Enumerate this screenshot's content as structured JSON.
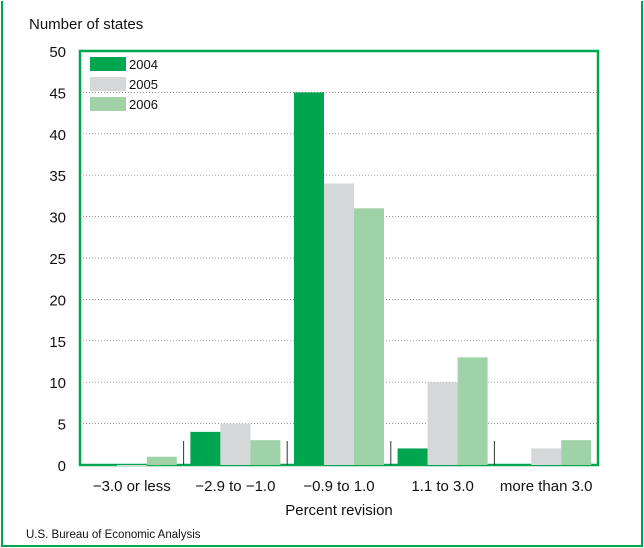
{
  "chart_data": {
    "type": "bar",
    "ylabel": "Number of states",
    "xlabel": "Percent revision",
    "categories": [
      "−3.0 or less",
      "−2.9 to −1.0",
      "−0.9 to 1.0",
      "1.1 to 3.0",
      "more than 3.0"
    ],
    "series": [
      {
        "name": "2004",
        "values": [
          0,
          4,
          45,
          2,
          0
        ],
        "color": "#00a550"
      },
      {
        "name": "2005",
        "values": [
          0,
          5,
          34,
          10,
          2
        ],
        "color": "#d6d7d9"
      },
      {
        "name": "2006",
        "values": [
          1,
          3,
          31,
          13,
          3
        ],
        "color": "#9fd3a7"
      }
    ],
    "ylim": [
      0,
      50
    ],
    "yticks": [
      0,
      5,
      10,
      15,
      20,
      25,
      30,
      35,
      40,
      45,
      50
    ],
    "grid": true,
    "legend_position": "top-left"
  },
  "source": "U.S. Bureau of Economic Analysis"
}
